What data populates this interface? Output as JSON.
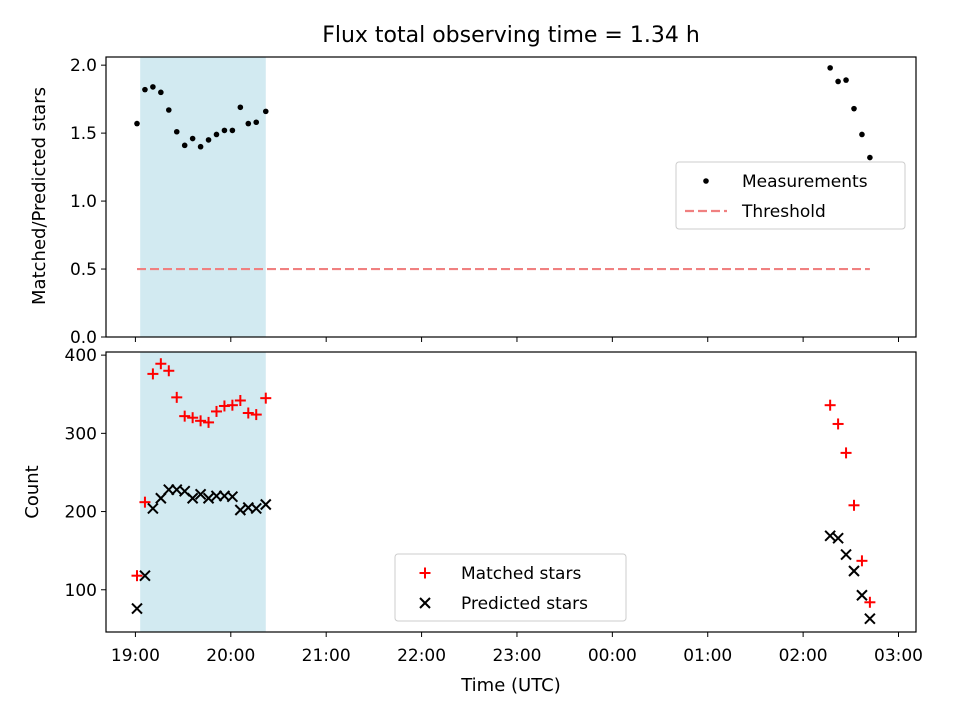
{
  "title": "Flux total observing time = 1.34 h",
  "colors": {
    "shade": "#add8e6",
    "threshold": "#f08080",
    "matched": "#ff0000",
    "predicted": "#000000",
    "measurements": "#000000"
  },
  "chart_data": [
    {
      "type": "scatter",
      "ylabel": "Matched/Predicted stars",
      "xlabel": "",
      "ylim": [
        0,
        2.06
      ],
      "yticks": [
        "0.0",
        "0.5",
        "1.0",
        "1.5",
        "2.0"
      ],
      "legend_position": "center-right",
      "shaded_interval": [
        "19:03",
        "20:22"
      ],
      "series": [
        {
          "name": "Measurements",
          "points": [
            [
              "19:01",
              1.57
            ],
            [
              "19:06",
              1.82
            ],
            [
              "19:11",
              1.84
            ],
            [
              "19:16",
              1.8
            ],
            [
              "19:21",
              1.67
            ],
            [
              "19:26",
              1.51
            ],
            [
              "19:31",
              1.41
            ],
            [
              "19:36",
              1.46
            ],
            [
              "19:41",
              1.4
            ],
            [
              "19:46",
              1.45
            ],
            [
              "19:51",
              1.49
            ],
            [
              "19:56",
              1.52
            ],
            [
              "20:01",
              1.52
            ],
            [
              "20:06",
              1.69
            ],
            [
              "20:11",
              1.57
            ],
            [
              "20:16",
              1.58
            ],
            [
              "20:22",
              1.66
            ],
            [
              "02:17",
              1.98
            ],
            [
              "02:22",
              1.88
            ],
            [
              "02:27",
              1.89
            ],
            [
              "02:32",
              1.68
            ],
            [
              "02:37",
              1.49
            ],
            [
              "02:42",
              1.32
            ]
          ]
        },
        {
          "name": "Threshold",
          "style": "dashed",
          "points": [
            [
              "19:01",
              0.5
            ],
            [
              "02:42",
              0.5
            ]
          ]
        }
      ]
    },
    {
      "type": "scatter",
      "xlabel": "Time (UTC)",
      "ylabel": "Count",
      "ylim": [
        46,
        404
      ],
      "yticks": [
        "100",
        "200",
        "300",
        "400"
      ],
      "xticks": [
        "19:00",
        "20:00",
        "21:00",
        "22:00",
        "23:00",
        "00:00",
        "01:00",
        "02:00",
        "03:00"
      ],
      "legend_position": "lower-center",
      "shaded_interval": [
        "19:03",
        "20:22"
      ],
      "series": [
        {
          "name": "Matched stars",
          "marker": "+",
          "points": [
            [
              "19:01",
              118
            ],
            [
              "19:06",
              212
            ],
            [
              "19:11",
              376
            ],
            [
              "19:16",
              389
            ],
            [
              "19:21",
              380
            ],
            [
              "19:26",
              346
            ],
            [
              "19:31",
              322
            ],
            [
              "19:36",
              320
            ],
            [
              "19:41",
              316
            ],
            [
              "19:46",
              314
            ],
            [
              "19:51",
              328
            ],
            [
              "19:56",
              335
            ],
            [
              "20:01",
              336
            ],
            [
              "20:06",
              342
            ],
            [
              "20:11",
              326
            ],
            [
              "20:16",
              324
            ],
            [
              "20:22",
              345
            ],
            [
              "02:17",
              336
            ],
            [
              "02:22",
              312
            ],
            [
              "02:27",
              275
            ],
            [
              "02:32",
              208
            ],
            [
              "02:37",
              137
            ],
            [
              "02:42",
              84
            ]
          ]
        },
        {
          "name": "Predicted stars",
          "marker": "x",
          "points": [
            [
              "19:01",
              76
            ],
            [
              "19:06",
              118
            ],
            [
              "19:11",
              204
            ],
            [
              "19:16",
              217
            ],
            [
              "19:21",
              228
            ],
            [
              "19:26",
              228
            ],
            [
              "19:31",
              226
            ],
            [
              "19:36",
              217
            ],
            [
              "19:41",
              222
            ],
            [
              "19:46",
              217
            ],
            [
              "19:51",
              220
            ],
            [
              "19:56",
              220
            ],
            [
              "20:01",
              219
            ],
            [
              "20:06",
              202
            ],
            [
              "20:11",
              205
            ],
            [
              "20:16",
              204
            ],
            [
              "20:22",
              209
            ],
            [
              "02:17",
              169
            ],
            [
              "02:22",
              166
            ],
            [
              "02:27",
              145
            ],
            [
              "02:32",
              124
            ],
            [
              "02:37",
              93
            ],
            [
              "02:42",
              63
            ]
          ]
        }
      ]
    }
  ]
}
